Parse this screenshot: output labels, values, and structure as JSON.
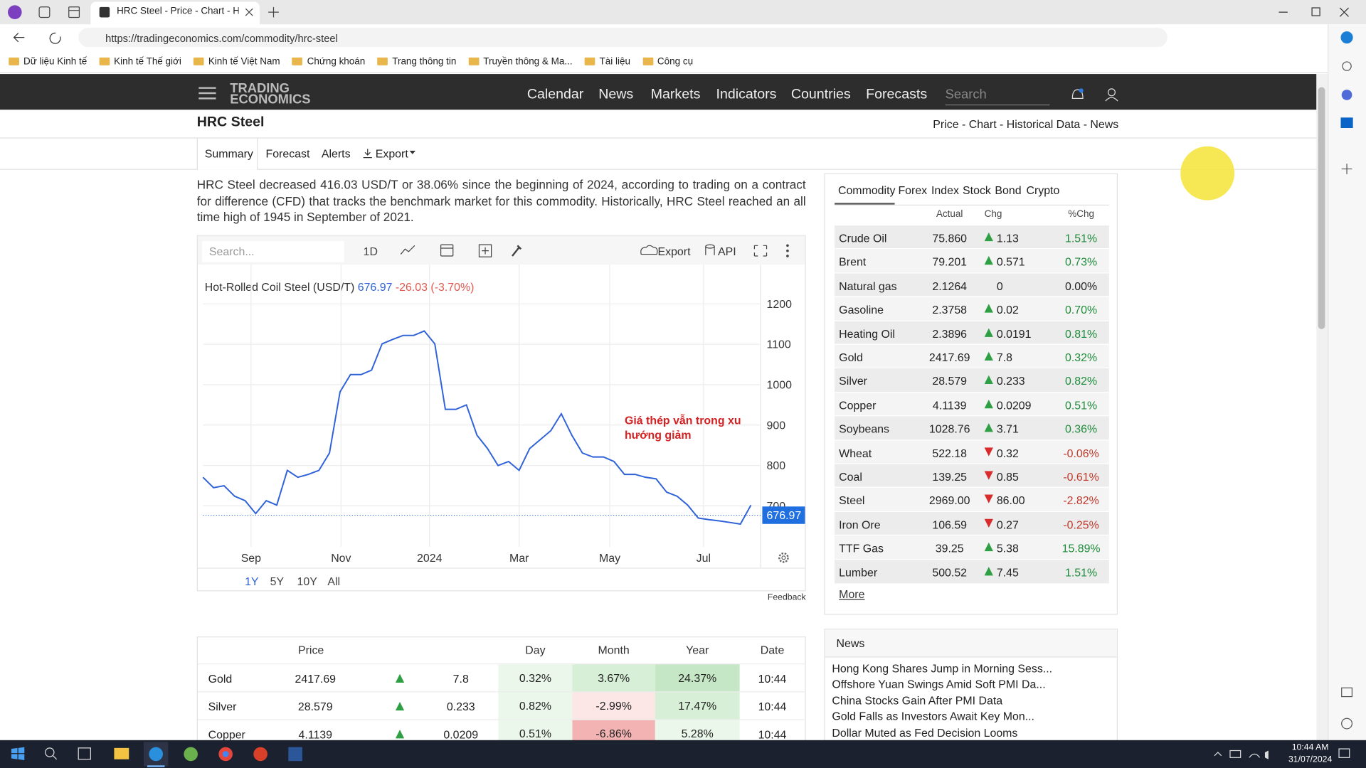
{
  "browser": {
    "tab_title": "HRC Steel - Price - Chart - Histori",
    "url": "https://tradingeconomics.com/commodity/hrc-steel",
    "bookmarks": [
      "Dữ liệu Kinh tế",
      "Kinh tế Thế giới",
      "Kinh tế Việt Nam",
      "Chứng khoán",
      "Trang thông tin",
      "Truyền thông & Ma...",
      "Tài liệu",
      "Công cụ"
    ]
  },
  "nav": {
    "logo_top": "TRADING",
    "logo_bottom": "ECONOMICS",
    "links": [
      "Calendar",
      "News",
      "Markets",
      "Indicators",
      "Countries",
      "Forecasts"
    ],
    "search_placeholder": "Search"
  },
  "header": {
    "title": "HRC Steel",
    "breadcrumb": "Price - Chart - Historical Data - News",
    "tabs": [
      "Summary",
      "Forecast",
      "Alerts",
      "Export"
    ]
  },
  "summary": "HRC Steel decreased 416.03 USD/T or 38.06% since the beginning of 2024, according to trading on a contract for difference (CFD) that tracks the benchmark market for this commodity. Historically, HRC Steel reached an all time high of 1945 in September of 2021.",
  "chart_toolbar": {
    "search_placeholder": "Search...",
    "interval": "1D",
    "export": "Export",
    "api": "API"
  },
  "chart_data": {
    "type": "line",
    "title": "Hot-Rolled Coil Steel (USD/T)",
    "last": 676.97,
    "change": "-26.03 (-3.70%)",
    "annotation": "Giá thép vẫn trong xu hướng giảm",
    "color": "#2f62d8",
    "values": [
      771,
      745,
      750,
      724,
      713,
      681,
      713,
      702,
      788,
      771,
      778,
      788,
      831,
      982,
      1025,
      1025,
      1036,
      1101,
      1112,
      1122,
      1122,
      1133,
      1101,
      939,
      939,
      950,
      875,
      842,
      800,
      810,
      788,
      842,
      864,
      886,
      928,
      875,
      831,
      821,
      821,
      810,
      778,
      778,
      771,
      767,
      734,
      724,
      702,
      670,
      666,
      663,
      659,
      655,
      702
    ],
    "xlim": [
      0,
      52
    ],
    "xticks": [
      {
        "value": 4.56,
        "label": "Sep"
      },
      {
        "value": 13.1,
        "label": "Nov"
      },
      {
        "value": 21.5,
        "label": "2024"
      },
      {
        "value": 30.0,
        "label": "Mar"
      },
      {
        "value": 38.6,
        "label": "May"
      },
      {
        "value": 47.5,
        "label": "Jul"
      }
    ],
    "ylim": [
      600,
      1220
    ],
    "yticks": [
      700,
      800,
      900,
      1000,
      1100,
      1200
    ],
    "grid": true
  },
  "chart_ranges": [
    "1Y",
    "5Y",
    "10Y",
    "All"
  ],
  "feedback": "Feedback",
  "commodities": {
    "tabs": [
      "Commodity",
      "Forex",
      "Index",
      "Stock",
      "Bond",
      "Crypto"
    ],
    "columns": [
      "Actual",
      "Chg",
      "%Chg"
    ],
    "rows": [
      {
        "name": "Crude Oil",
        "actual": "75.860",
        "chg": "1.13",
        "pct": "1.51%",
        "dir": "up"
      },
      {
        "name": "Brent",
        "actual": "79.201",
        "chg": "0.571",
        "pct": "0.73%",
        "dir": "up"
      },
      {
        "name": "Natural gas",
        "actual": "2.1264",
        "chg": "0",
        "pct": "0.00%",
        "dir": "flat"
      },
      {
        "name": "Gasoline",
        "actual": "2.3758",
        "chg": "0.02",
        "pct": "0.70%",
        "dir": "up"
      },
      {
        "name": "Heating Oil",
        "actual": "2.3896",
        "chg": "0.0191",
        "pct": "0.81%",
        "dir": "up"
      },
      {
        "name": "Gold",
        "actual": "2417.69",
        "chg": "7.8",
        "pct": "0.32%",
        "dir": "up"
      },
      {
        "name": "Silver",
        "actual": "28.579",
        "chg": "0.233",
        "pct": "0.82%",
        "dir": "up"
      },
      {
        "name": "Copper",
        "actual": "4.1139",
        "chg": "0.0209",
        "pct": "0.51%",
        "dir": "up"
      },
      {
        "name": "Soybeans",
        "actual": "1028.76",
        "chg": "3.71",
        "pct": "0.36%",
        "dir": "up"
      },
      {
        "name": "Wheat",
        "actual": "522.18",
        "chg": "0.32",
        "pct": "-0.06%",
        "dir": "down"
      },
      {
        "name": "Coal",
        "actual": "139.25",
        "chg": "0.85",
        "pct": "-0.61%",
        "dir": "down"
      },
      {
        "name": "Steel",
        "actual": "2969.00",
        "chg": "86.00",
        "pct": "-2.82%",
        "dir": "down"
      },
      {
        "name": "Iron Ore",
        "actual": "106.59",
        "chg": "0.27",
        "pct": "-0.25%",
        "dir": "down"
      },
      {
        "name": "TTF Gas",
        "actual": "39.25",
        "chg": "5.38",
        "pct": "15.89%",
        "dir": "up"
      },
      {
        "name": "Lumber",
        "actual": "500.52",
        "chg": "7.45",
        "pct": "1.51%",
        "dir": "up"
      }
    ],
    "more": "More"
  },
  "price_table": {
    "columns": [
      "Price",
      "Day",
      "Month",
      "Year",
      "Date"
    ],
    "rows": [
      {
        "name": "Gold",
        "price": "2417.69",
        "chg": "7.8",
        "day": "0.32%",
        "month": "3.67%",
        "year": "24.37%",
        "date": "10:44",
        "colors": [
          "#eaf7ea",
          "#d6efd6",
          "#c6e7c6"
        ]
      },
      {
        "name": "Silver",
        "price": "28.579",
        "chg": "0.233",
        "day": "0.82%",
        "month": "-2.99%",
        "year": "17.47%",
        "date": "10:44",
        "colors": [
          "#eaf7ea",
          "#fde6e6",
          "#d6efd6"
        ]
      },
      {
        "name": "Copper",
        "price": "4.1139",
        "chg": "0.0209",
        "day": "0.51%",
        "month": "-6.86%",
        "year": "5.28%",
        "date": "10:44",
        "colors": [
          "#eaf7ea",
          "#f3b3b3",
          "#eaf7ea"
        ]
      }
    ]
  },
  "news": {
    "title": "News",
    "items": [
      "Hong Kong Shares Jump in Morning Sess...",
      "Offshore Yuan Swings Amid Soft PMI Da...",
      "China Stocks Gain After PMI Data",
      "Gold Falls as Investors Await Key Mon...",
      "Dollar Muted as Fed Decision Looms"
    ]
  },
  "taskbar": {
    "time": "10:44 AM",
    "date": "31/07/2024"
  }
}
